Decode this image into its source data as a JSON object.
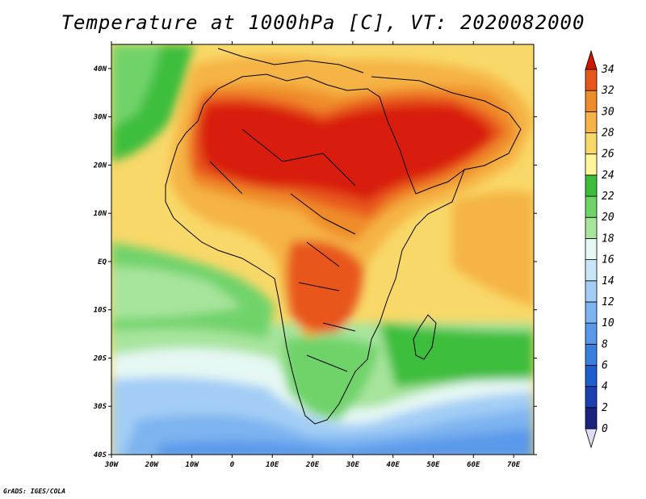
{
  "title": "Temperature at 1000hPa [C], VT: 2020082000",
  "footer": "GrADS: IGES/COLA",
  "map": {
    "lon_range": [
      -30,
      75
    ],
    "lat_range": [
      -40,
      45
    ],
    "lon_ticks": [
      "30W",
      "20W",
      "10W",
      "0",
      "10E",
      "20E",
      "30E",
      "40E",
      "50E",
      "60E",
      "70E"
    ],
    "lat_ticks": [
      "40S",
      "30S",
      "20S",
      "10S",
      "EQ",
      "10N",
      "20N",
      "30N",
      "40N"
    ]
  },
  "colorbar": {
    "labels": [
      "0",
      "2",
      "4",
      "6",
      "8",
      "10",
      "12",
      "14",
      "16",
      "18",
      "20",
      "22",
      "24",
      "26",
      "28",
      "30",
      "32",
      "34"
    ],
    "colors": [
      "#1a237e",
      "#1c3fb0",
      "#1e5fd0",
      "#3a7fe0",
      "#5a99ea",
      "#7db4f0",
      "#a3cdf5",
      "#c8e6f8",
      "#e6f8f4",
      "#a7e49c",
      "#6fd36a",
      "#3cbe3c",
      "#fff59a",
      "#f8d868",
      "#f5b445",
      "#ef8c2a",
      "#e8561c",
      "#d81e0c",
      "#cc1800"
    ]
  }
}
